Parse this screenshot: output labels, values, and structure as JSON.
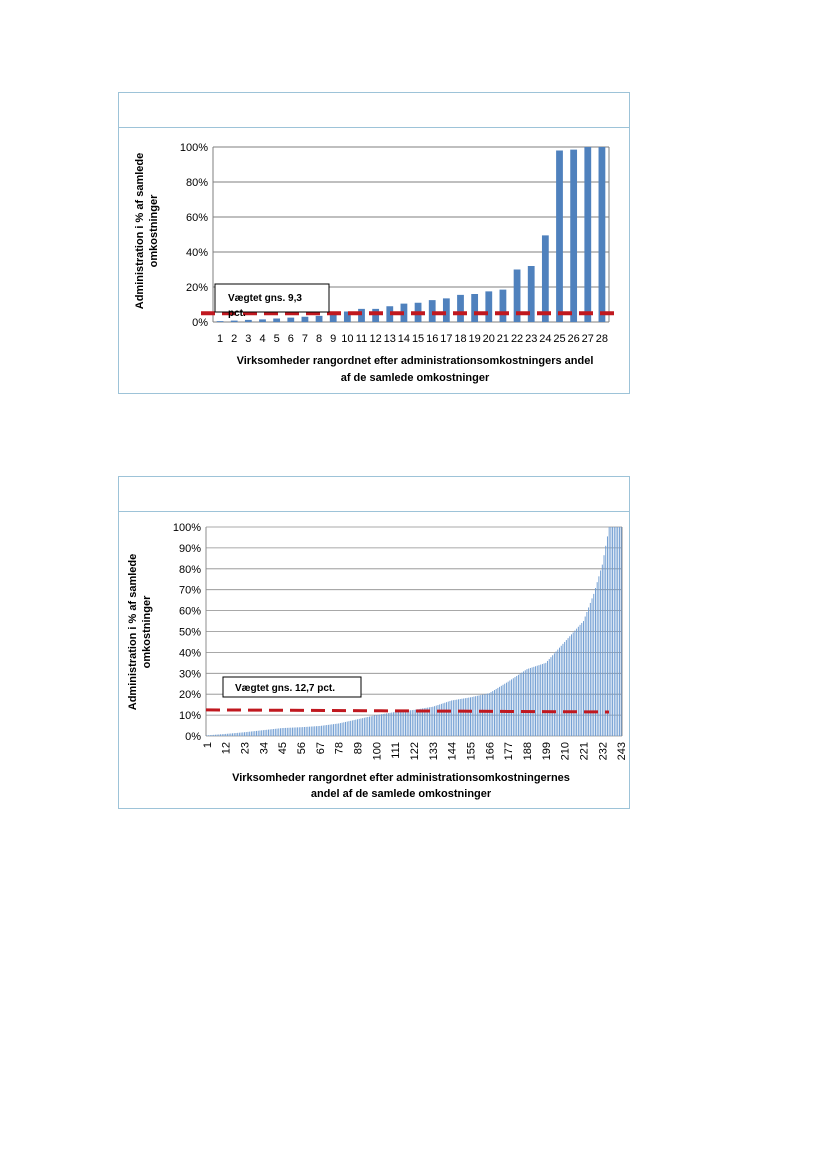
{
  "charts": [
    {
      "type": "bar",
      "categories": [
        "1",
        "2",
        "3",
        "4",
        "5",
        "6",
        "7",
        "8",
        "9",
        "10",
        "11",
        "12",
        "13",
        "14",
        "15",
        "16",
        "17",
        "18",
        "19",
        "20",
        "21",
        "22",
        "23",
        "24",
        "25",
        "26",
        "27",
        "28"
      ],
      "values": [
        0.5,
        0.8,
        1.2,
        1.5,
        2,
        2.5,
        3,
        3.5,
        5.5,
        6,
        7.5,
        7.5,
        9,
        10.5,
        11,
        12.5,
        13.5,
        15.5,
        16,
        17.5,
        18.5,
        30,
        32,
        49.5,
        98,
        98.5,
        100,
        100
      ],
      "yticks": [
        "0%",
        "20%",
        "40%",
        "60%",
        "80%",
        "100%"
      ],
      "ylim": [
        0,
        100
      ],
      "ylabel_line1": "Administration i % af samlede",
      "ylabel_line2": "omkostninger",
      "xlabel_line1": "Virksomheder rangordnet efter administrationsomkostningers andel",
      "xlabel_line2": "af de samlede omkostninger",
      "avg_value": 5,
      "annotation_line1": "Vægtet gns. 9,3",
      "annotation_line2": "pct.",
      "bar_color": "#4f81bd",
      "avg_color": "#c0181f"
    },
    {
      "type": "bar",
      "n": 243,
      "tick_labels": [
        "1",
        "12",
        "23",
        "34",
        "45",
        "56",
        "67",
        "78",
        "89",
        "100",
        "111",
        "122",
        "133",
        "144",
        "155",
        "166",
        "177",
        "188",
        "199",
        "210",
        "221",
        "232",
        "243"
      ],
      "profile_rank": [
        1,
        12,
        23,
        34,
        45,
        56,
        67,
        78,
        89,
        100,
        111,
        122,
        133,
        144,
        155,
        166,
        177,
        188,
        199,
        210,
        221,
        227,
        232,
        236,
        243
      ],
      "profile_pct": [
        0.3,
        1,
        1.8,
        2.8,
        3.8,
        4.2,
        4.8,
        6,
        8,
        10,
        11.5,
        12.5,
        14,
        17,
        18.5,
        20.5,
        26,
        32,
        35,
        45,
        55,
        68,
        82,
        100,
        100
      ],
      "yticks": [
        "0%",
        "10%",
        "20%",
        "30%",
        "40%",
        "50%",
        "60%",
        "70%",
        "80%",
        "90%",
        "100%"
      ],
      "ylim": [
        0,
        100
      ],
      "ylabel_line1": "Administration i % af samlede",
      "ylabel_line2": "omkostninger",
      "xlabel_line1": "Virksomheder rangordnet efter administrationsomkostningernes",
      "xlabel_line2": "andel af de samlede omkostninger",
      "avg_start": 12.5,
      "avg_end": 11.5,
      "annotation": "Vægtet gns. 12,7  pct.",
      "bar_color": "#6d9bd1",
      "avg_color": "#c0181f"
    }
  ]
}
